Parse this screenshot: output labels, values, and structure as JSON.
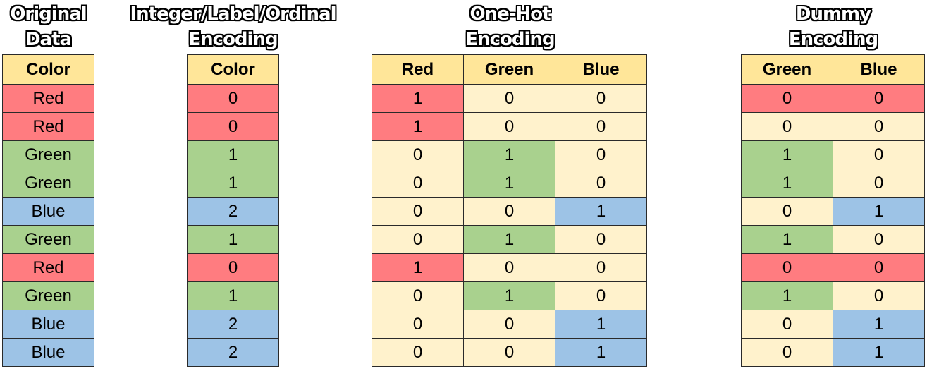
{
  "sections": [
    {
      "id": "original",
      "title_lines": [
        "Original",
        "Data"
      ],
      "headers": [
        "Color"
      ],
      "rows": [
        [
          "Red"
        ],
        [
          "Red"
        ],
        [
          "Green"
        ],
        [
          "Green"
        ],
        [
          "Blue"
        ],
        [
          "Green"
        ],
        [
          "Red"
        ],
        [
          "Green"
        ],
        [
          "Blue"
        ],
        [
          "Blue"
        ]
      ]
    },
    {
      "id": "integer",
      "title_lines": [
        "Integer/Label/Ordinal",
        "Encoding"
      ],
      "headers": [
        "Color"
      ],
      "rows": [
        [
          "0"
        ],
        [
          "0"
        ],
        [
          "1"
        ],
        [
          "1"
        ],
        [
          "2"
        ],
        [
          "1"
        ],
        [
          "0"
        ],
        [
          "1"
        ],
        [
          "2"
        ],
        [
          "2"
        ]
      ]
    },
    {
      "id": "onehot",
      "title_lines": [
        "One-Hot",
        "Encoding"
      ],
      "headers": [
        "Red",
        "Green",
        "Blue"
      ],
      "rows": [
        [
          "1",
          "0",
          "0"
        ],
        [
          "1",
          "0",
          "0"
        ],
        [
          "0",
          "1",
          "0"
        ],
        [
          "0",
          "1",
          "0"
        ],
        [
          "0",
          "0",
          "1"
        ],
        [
          "0",
          "1",
          "0"
        ],
        [
          "1",
          "0",
          "0"
        ],
        [
          "0",
          "1",
          "0"
        ],
        [
          "0",
          "0",
          "1"
        ],
        [
          "0",
          "0",
          "1"
        ]
      ]
    },
    {
      "id": "dummy",
      "title_lines": [
        "Dummy",
        "Encoding"
      ],
      "headers": [
        "Green",
        "Blue"
      ],
      "rows": [
        [
          "0",
          "0"
        ],
        [
          "0",
          "0"
        ],
        [
          "1",
          "0"
        ],
        [
          "1",
          "0"
        ],
        [
          "0",
          "1"
        ],
        [
          "1",
          "0"
        ],
        [
          "0",
          "0"
        ],
        [
          "1",
          "0"
        ],
        [
          "0",
          "1"
        ],
        [
          "0",
          "1"
        ]
      ]
    }
  ],
  "row_colors": [
    "Red",
    "Red",
    "Green",
    "Green",
    "Blue",
    "Green",
    "Red",
    "Green",
    "Blue",
    "Blue"
  ],
  "colors": {
    "header": "#ffe699",
    "red": "#ff7c80",
    "green": "#a9d18e",
    "blue": "#9dc3e6",
    "empty": "#fff2cc"
  }
}
